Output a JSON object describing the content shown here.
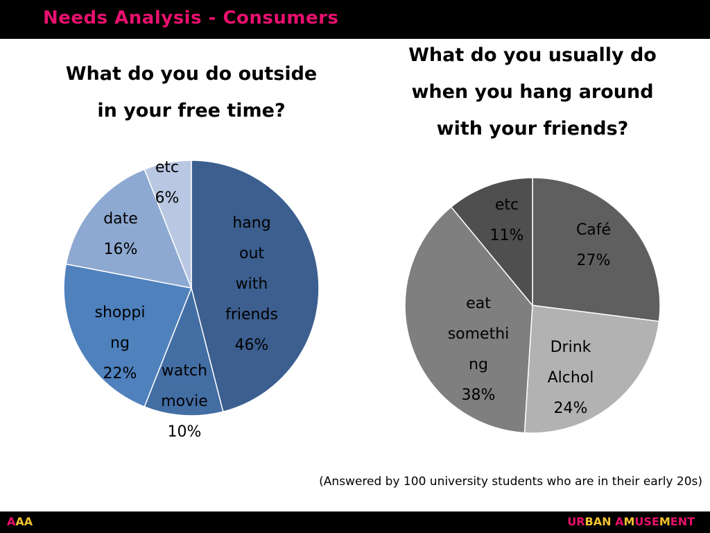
{
  "header": {
    "title": "Needs Analysis - Consumers"
  },
  "chart_data": [
    {
      "type": "pie",
      "title": [
        "What do you do outside",
        "in your free time?"
      ],
      "slices": [
        {
          "label": [
            "hang",
            "out",
            "with",
            "friends"
          ],
          "value": 46,
          "value_label": "46%",
          "color": "#3c5f8f"
        },
        {
          "label": [
            "watch",
            "movie"
          ],
          "value": 10,
          "value_label": "10%",
          "color": "#436ea4"
        },
        {
          "label": [
            "shoppi",
            "ng"
          ],
          "value": 22,
          "value_label": "22%",
          "color": "#4f81bd"
        },
        {
          "label": [
            "date"
          ],
          "value": 16,
          "value_label": "16%",
          "color": "#8ea9d1"
        },
        {
          "label": [
            "etc"
          ],
          "value": 6,
          "value_label": "6%",
          "color": "#b9c7e2"
        }
      ]
    },
    {
      "type": "pie",
      "title": [
        "What do you usually do",
        "when you hang around",
        "with your friends?"
      ],
      "slices": [
        {
          "label": [
            "Café"
          ],
          "value": 27,
          "value_label": "27%",
          "color": "#5f5f5f"
        },
        {
          "label": [
            "Drink",
            "Alchol"
          ],
          "value": 24,
          "value_label": "24%",
          "color": "#b2b2b2"
        },
        {
          "label": [
            "eat",
            "somethi",
            "ng"
          ],
          "value": 38,
          "value_label": "38%",
          "color": "#7f7f7f"
        },
        {
          "label": [
            "etc"
          ],
          "value": 11,
          "value_label": "11%",
          "color": "#4f4f4f"
        }
      ]
    }
  ],
  "footnote": "(Answered by 100 university students who are in their early 20s)",
  "footer": {
    "left_brand": [
      {
        "text": "A",
        "color": "#e8106e"
      },
      {
        "text": "AA",
        "color": "#f2c230"
      }
    ],
    "right_brand": [
      {
        "text": "UR",
        "color": "#e8106e"
      },
      {
        "text": "BAN ",
        "color": "#f2c230"
      },
      {
        "text": "A",
        "color": "#e8106e"
      },
      {
        "text": "M",
        "color": "#f2c230"
      },
      {
        "text": "USE",
        "color": "#e8106e"
      },
      {
        "text": "M",
        "color": "#f2c230"
      },
      {
        "text": "ENT",
        "color": "#e8106e"
      }
    ]
  }
}
